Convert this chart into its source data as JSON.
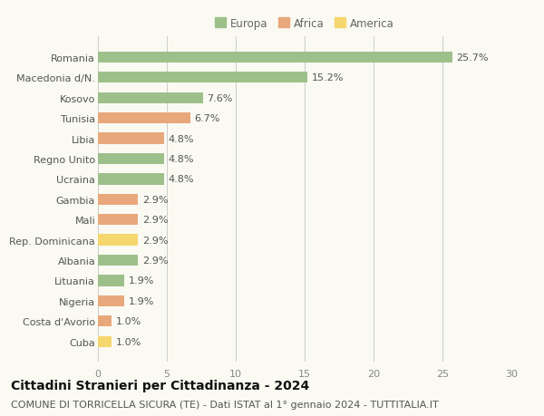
{
  "categories": [
    "Romania",
    "Macedonia d/N.",
    "Kosovo",
    "Tunisia",
    "Libia",
    "Regno Unito",
    "Ucraina",
    "Gambia",
    "Mali",
    "Rep. Dominicana",
    "Albania",
    "Lituania",
    "Nigeria",
    "Costa d'Avorio",
    "Cuba"
  ],
  "values": [
    25.7,
    15.2,
    7.6,
    6.7,
    4.8,
    4.8,
    4.8,
    2.9,
    2.9,
    2.9,
    2.9,
    1.9,
    1.9,
    1.0,
    1.0
  ],
  "continents": [
    "Europa",
    "Europa",
    "Europa",
    "Africa",
    "Africa",
    "Europa",
    "Europa",
    "Africa",
    "Africa",
    "America",
    "Europa",
    "Europa",
    "Africa",
    "Africa",
    "America"
  ],
  "colors": {
    "Europa": "#9dc08b",
    "Africa": "#e8a87c",
    "America": "#f5d76e"
  },
  "legend_labels": [
    "Europa",
    "Africa",
    "America"
  ],
  "xlim": [
    0,
    30
  ],
  "xticks": [
    0,
    5,
    10,
    15,
    20,
    25,
    30
  ],
  "title": "Cittadini Stranieri per Cittadinanza - 2024",
  "subtitle": "COMUNE DI TORRICELLA SICURA (TE) - Dati ISTAT al 1° gennaio 2024 - TUTTITALIA.IT",
  "title_fontsize": 10,
  "subtitle_fontsize": 8,
  "label_fontsize": 8,
  "tick_fontsize": 8,
  "background_color": "#fafaf2",
  "bar_height": 0.55
}
